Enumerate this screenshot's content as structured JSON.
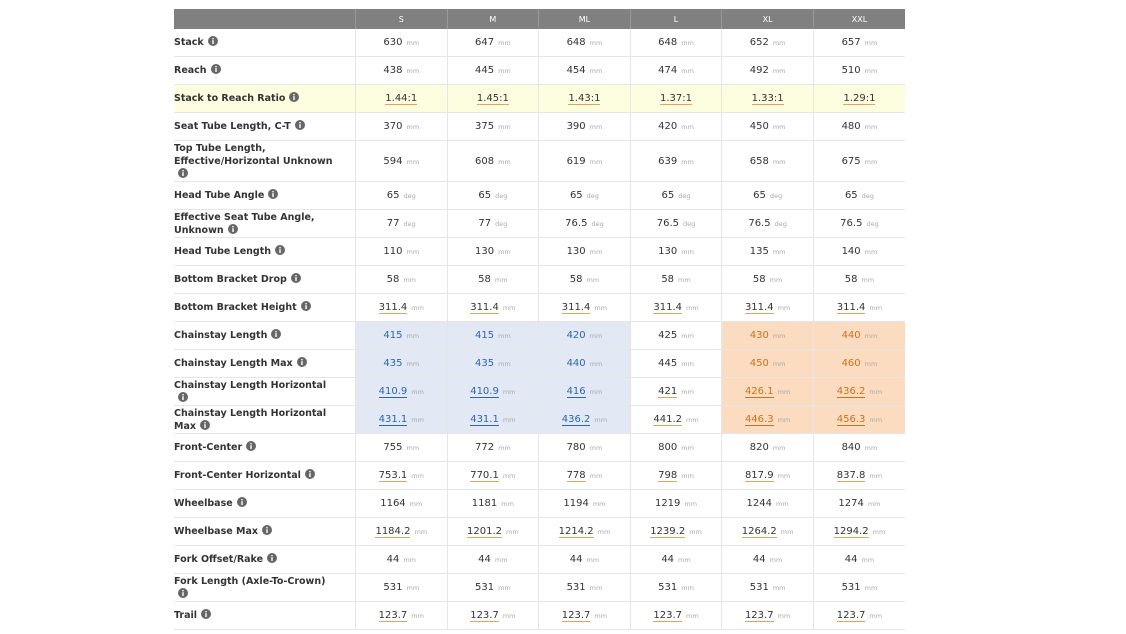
{
  "table": {
    "columns": [
      "S",
      "M",
      "ML",
      "L",
      "XL",
      "XXL"
    ],
    "rows": [
      {
        "label": "Stack",
        "unit": "mm",
        "values": [
          630,
          647,
          648,
          648,
          652,
          657
        ]
      },
      {
        "label": "Reach",
        "unit": "mm",
        "values": [
          438,
          445,
          454,
          474,
          492,
          510
        ]
      },
      {
        "label": "Stack to Reach Ratio",
        "values": [
          "1.44:1",
          "1.45:1",
          "1.43:1",
          "1.37:1",
          "1.33:1",
          "1.29:1"
        ]
      },
      {
        "label": "Seat Tube Length, C-T",
        "unit": "mm",
        "values": [
          370,
          375,
          390,
          420,
          450,
          480
        ]
      },
      {
        "label": "Top Tube Length, Effective/Horizontal Unknown",
        "unit": "mm",
        "values": [
          594,
          608,
          619,
          639,
          658,
          675
        ]
      },
      {
        "label": "Head Tube Angle",
        "unit": "deg",
        "values": [
          65,
          65,
          65,
          65,
          65,
          65
        ]
      },
      {
        "label": "Effective Seat Tube Angle, Unknown",
        "unit": "deg",
        "values": [
          77,
          77,
          76.5,
          76.5,
          76.5,
          76.5
        ]
      },
      {
        "label": "Head Tube Length",
        "unit": "mm",
        "values": [
          110,
          130,
          130,
          130,
          135,
          140
        ]
      },
      {
        "label": "Bottom Bracket Drop",
        "unit": "mm",
        "values": [
          58,
          58,
          58,
          58,
          58,
          58
        ]
      },
      {
        "label": "Bottom Bracket Height",
        "unit": "mm",
        "values": [
          311.4,
          311.4,
          311.4,
          311.4,
          311.4,
          311.4
        ]
      },
      {
        "label": "Chainstay Length",
        "unit": "mm",
        "values": [
          415,
          415,
          420,
          425,
          430,
          440
        ]
      },
      {
        "label": "Chainstay Length Max",
        "unit": "mm",
        "values": [
          435,
          435,
          440,
          445,
          450,
          460
        ]
      },
      {
        "label": "Chainstay Length Horizontal",
        "unit": "mm",
        "values": [
          410.9,
          410.9,
          416,
          421,
          426.1,
          436.2
        ]
      },
      {
        "label": "Chainstay Length Horizontal Max",
        "unit": "mm",
        "values": [
          431.1,
          431.1,
          436.2,
          441.2,
          446.3,
          456.3
        ]
      },
      {
        "label": "Front-Center",
        "unit": "mm",
        "values": [
          755,
          772,
          780,
          800,
          820,
          840
        ]
      },
      {
        "label": "Front-Center Horizontal",
        "unit": "mm",
        "values": [
          753.1,
          770.1,
          778,
          798,
          817.9,
          837.8
        ]
      },
      {
        "label": "Wheelbase",
        "unit": "mm",
        "values": [
          1164,
          1181,
          1194,
          1219,
          1244,
          1274
        ]
      },
      {
        "label": "Wheelbase Max",
        "unit": "mm",
        "values": [
          1184.2,
          1201.2,
          1214.2,
          1239.2,
          1264.2,
          1294.2
        ]
      },
      {
        "label": "Fork Offset/Rake",
        "unit": "mm",
        "values": [
          44,
          44,
          44,
          44,
          44,
          44
        ]
      },
      {
        "label": "Fork Length (Axle-To-Crown)",
        "unit": "mm",
        "values": [
          531,
          531,
          531,
          531,
          531,
          531
        ]
      },
      {
        "label": "Trail",
        "unit": "mm",
        "values": [
          123.7,
          123.7,
          123.7,
          123.7,
          123.7,
          123.7
        ]
      }
    ]
  }
}
